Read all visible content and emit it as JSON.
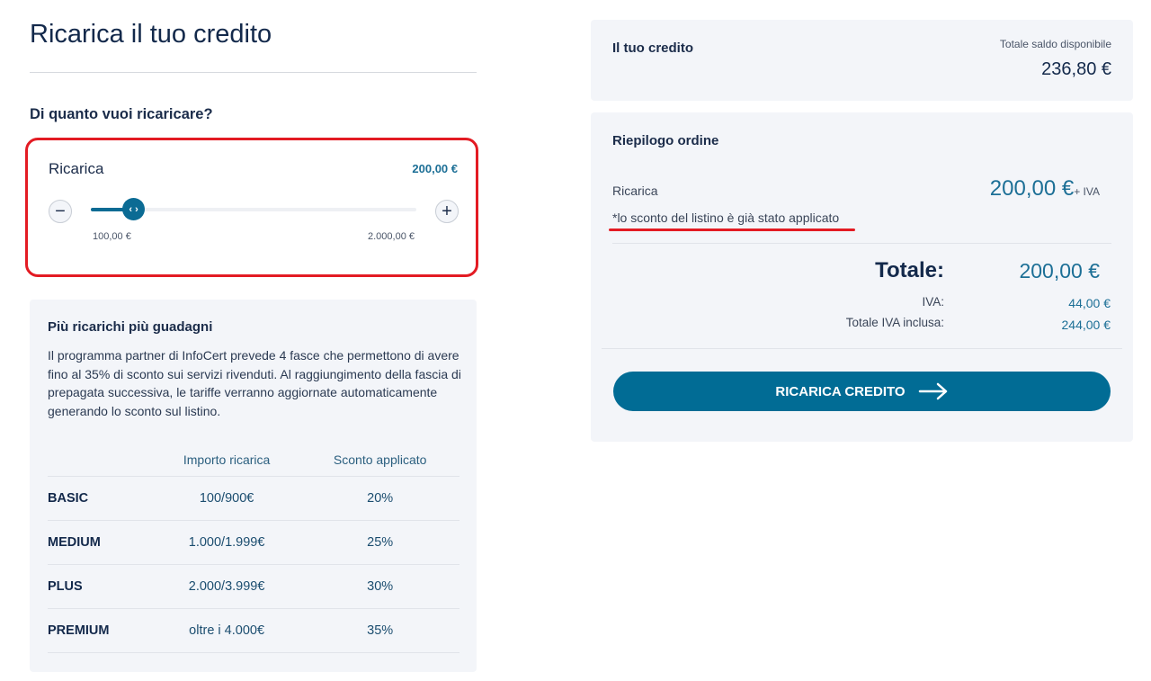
{
  "page": {
    "title": "Ricarica il tuo credito",
    "question": "Di quanto vuoi ricaricare?"
  },
  "slider": {
    "label": "Ricarica",
    "value_text": "200,00 €",
    "min_label": "100,00 €",
    "max_label": "2.000,00 €",
    "value": 200,
    "min": 100,
    "max": 2000,
    "minus": "−",
    "plus": "+",
    "thumb_glyph": "‹ ›"
  },
  "info": {
    "title": "Più ricarichi più guadagni",
    "text": "Il programma partner di InfoCert prevede 4 fasce che permettono di avere fino al 35% di sconto sui servizi rivenduti. Al raggiungimento della fascia di prepagata successiva, le tariffe verranno aggiornate automaticamente generando lo sconto sul listino.",
    "headers": [
      "",
      "Importo ricarica",
      "Sconto applicato"
    ],
    "rows": [
      [
        "BASIC",
        "100/900€",
        "20%"
      ],
      [
        "MEDIUM",
        "1.000/1.999€",
        "25%"
      ],
      [
        "PLUS",
        "2.000/3.999€",
        "30%"
      ],
      [
        "PREMIUM",
        "oltre i 4.000€",
        "35%"
      ]
    ]
  },
  "credit": {
    "title": "Il tuo credito",
    "balance_label": "Totale saldo disponibile",
    "balance": "236,80 €"
  },
  "summary": {
    "title": "Riepilogo ordine",
    "item_label": "Ricarica",
    "item_amount": "200,00 €",
    "item_suffix": "+ IVA",
    "note": "*lo sconto del listino è già stato applicato",
    "total_label": "Totale:",
    "total": "200,00 €",
    "iva_label": "IVA:",
    "iva": "44,00 €",
    "total_iva_label": "Totale IVA inclusa:",
    "total_iva": "244,00 €",
    "button": "RICARICA CREDITO"
  },
  "colors": {
    "accent": "#016c95",
    "highlight": "#e31b23"
  }
}
